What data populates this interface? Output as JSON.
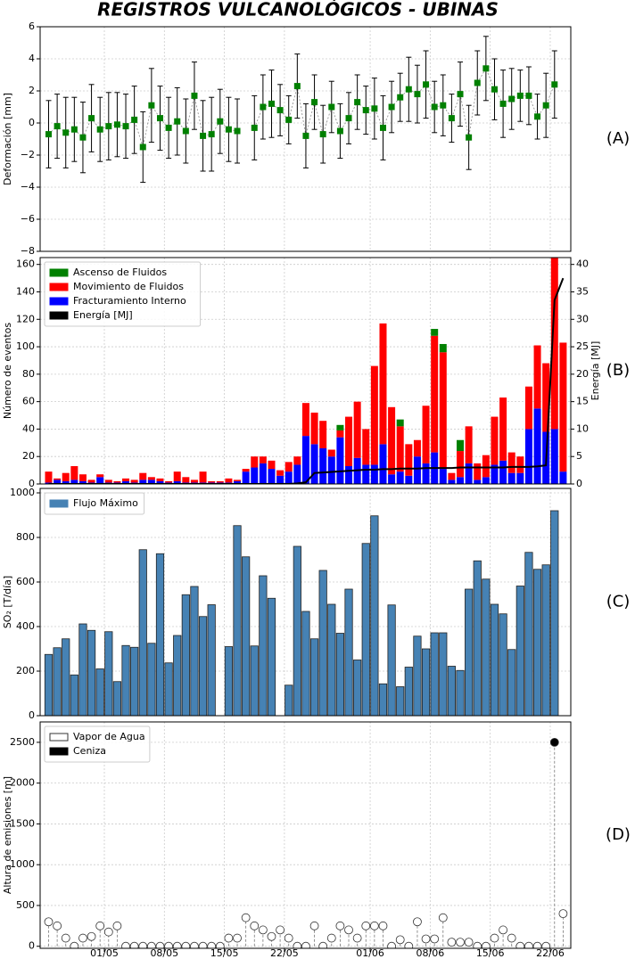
{
  "chart_data": [
    {
      "type": "errorbar",
      "title": "REGISTROS VULCANOLÓGICOS - UBINAS",
      "label": "(A)",
      "ylabel": "Deformación [mm]",
      "color": "#008000",
      "values": [
        -0.7,
        -0.2,
        -0.6,
        -0.4,
        -0.9,
        0.3,
        -0.4,
        -0.2,
        -0.1,
        -0.2,
        0.2,
        -1.5,
        1.1,
        0.3,
        -0.3,
        0.1,
        -0.5,
        1.7,
        -0.8,
        -0.7,
        0.1,
        -0.4,
        -0.5,
        null,
        -0.3,
        1.0,
        1.2,
        0.8,
        0.2,
        2.3,
        -0.8,
        1.3,
        -0.7,
        1.0,
        -0.5,
        0.3,
        1.3,
        0.8,
        0.9,
        -0.3,
        1.0,
        1.6,
        2.1,
        1.8,
        2.4,
        1.0,
        1.1,
        0.3,
        1.8,
        -0.9,
        2.5,
        3.4,
        2.1,
        1.2,
        1.5,
        1.7,
        1.7,
        0.4,
        1.1,
        2.4
      ],
      "errors": [
        2.1,
        2.0,
        2.2,
        2.0,
        2.2,
        2.1,
        2.0,
        2.1,
        2.0,
        2.0,
        2.1,
        2.2,
        2.3,
        2.0,
        1.9,
        2.1,
        2.0,
        2.1,
        2.2,
        2.3,
        2.0,
        2.0,
        2.0,
        null,
        2.0,
        2.0,
        2.1,
        1.6,
        1.5,
        2.0,
        2.0,
        1.7,
        1.8,
        1.6,
        1.7,
        1.6,
        1.7,
        1.5,
        1.9,
        2.0,
        1.6,
        1.5,
        2.0,
        1.8,
        2.1,
        1.6,
        1.9,
        1.5,
        2.0,
        2.0,
        2.0,
        2.0,
        1.9,
        2.1,
        1.9,
        1.6,
        1.8,
        1.4,
        2.0,
        2.1
      ],
      "ylim": [
        -8,
        6
      ],
      "yticks": [
        {
          "value": -8,
          "label": "−8"
        },
        {
          "value": -6,
          "label": "−6"
        },
        {
          "value": -4,
          "label": "−4"
        },
        {
          "value": -2,
          "label": "−2"
        },
        0,
        2,
        4,
        6
      ],
      "grid": true
    },
    {
      "type": "stacked_bar",
      "label": "(B)",
      "ylabel": "Número de eventos",
      "y2label": "Energía [MJ]",
      "legend": "upper left",
      "series": [
        {
          "name": "Ascenso de Fluidos",
          "color": "#008000",
          "values": [
            0,
            0,
            0,
            0,
            0,
            0,
            0,
            0,
            0,
            0,
            0,
            0,
            0,
            0,
            0,
            0,
            0,
            0,
            0,
            0,
            0,
            0,
            0,
            0,
            0,
            0,
            0,
            0,
            0,
            0,
            0,
            0,
            0,
            0,
            4,
            0,
            0,
            0,
            0,
            0,
            0,
            5,
            0,
            0,
            0,
            5,
            6,
            0,
            8,
            0,
            0,
            0,
            0,
            0,
            0,
            0,
            0,
            0,
            0,
            0,
            0
          ]
        },
        {
          "name": "Movimiento de Fluidos",
          "color": "#ff0000",
          "values": [
            8,
            1,
            6,
            10,
            5,
            2,
            2,
            2,
            1,
            2,
            2,
            5,
            2,
            2,
            1,
            7,
            4,
            2,
            8,
            1,
            1,
            3,
            1,
            2,
            8,
            5,
            6,
            4,
            7,
            6,
            24,
            23,
            20,
            5,
            5,
            36,
            41,
            26,
            72,
            88,
            49,
            33,
            23,
            12,
            42,
            85,
            85,
            5,
            19,
            27,
            12,
            16,
            35,
            46,
            15,
            12,
            31,
            46,
            50,
            125,
            94
          ]
        },
        {
          "name": "Fracturamiento Interno",
          "color": "#0000ff",
          "values": [
            1,
            3,
            2,
            3,
            2,
            1,
            5,
            1,
            1,
            2,
            1,
            3,
            3,
            2,
            1,
            2,
            1,
            1,
            1,
            1,
            1,
            1,
            2,
            9,
            12,
            15,
            11,
            6,
            9,
            14,
            35,
            29,
            26,
            20,
            34,
            13,
            19,
            14,
            14,
            29,
            7,
            9,
            6,
            20,
            15,
            23,
            11,
            3,
            5,
            15,
            3,
            5,
            14,
            17,
            8,
            8,
            40,
            55,
            38,
            40,
            9
          ]
        },
        {
          "name": "Energía [MJ]",
          "color": "#000000",
          "axis": "y2",
          "values": [
            0,
            0,
            0,
            0,
            0,
            0,
            0,
            0,
            0,
            0,
            0,
            0,
            0,
            0,
            0,
            0,
            0,
            0,
            0,
            0,
            0,
            0,
            0,
            0,
            0,
            0,
            0,
            0,
            0,
            0.1,
            0.3,
            2.0,
            2.1,
            2.2,
            2.3,
            2.4,
            2.5,
            2.6,
            2.6,
            2.7,
            2.7,
            2.8,
            2.8,
            2.8,
            2.9,
            2.9,
            2.9,
            2.9,
            3.0,
            3.0,
            3.0,
            3.0,
            3.0,
            3.0,
            3.1,
            3.1,
            3.1,
            3.2,
            3.4,
            33.5,
            37.5
          ]
        }
      ],
      "ylim": [
        0,
        165
      ],
      "yticks": [
        0,
        20,
        40,
        60,
        80,
        100,
        120,
        140,
        160
      ],
      "y2lim": [
        0,
        41.25
      ],
      "y2ticks": [
        0,
        5,
        10,
        15,
        20,
        25,
        30,
        35,
        40
      ],
      "grid": true
    },
    {
      "type": "bar",
      "label": "(C)",
      "ylabel": "SO₂ [T/día]",
      "legend": "upper left",
      "series": [
        {
          "name": "Flujo Máximo",
          "color": "#4682b4",
          "values": [
            275,
            305,
            345,
            183,
            412,
            383,
            210,
            377,
            153,
            315,
            307,
            745,
            325,
            727,
            237,
            360,
            543,
            580,
            445,
            498,
            null,
            310,
            853,
            713,
            313,
            628,
            527,
            null,
            137,
            760,
            468,
            345,
            652,
            500,
            370,
            568,
            250,
            773,
            897,
            143,
            497,
            130,
            218,
            357,
            300,
            372,
            372,
            222,
            203,
            568,
            695,
            613,
            500,
            457,
            297,
            582,
            733,
            657,
            677,
            920
          ]
        }
      ],
      "ylim": [
        0,
        1020
      ],
      "yticks": [
        0,
        200,
        400,
        600,
        800,
        1000
      ],
      "grid": true
    },
    {
      "type": "stem",
      "label": "(D)",
      "ylabel": "Altura de emisiones [m]",
      "legend": "upper left",
      "categories": [
        null,
        null,
        null,
        null,
        null,
        null,
        null,
        "01/05",
        null,
        null,
        null,
        null,
        null,
        null,
        "08/05",
        null,
        null,
        null,
        null,
        null,
        null,
        "15/05",
        null,
        null,
        null,
        null,
        null,
        null,
        "22/05",
        null,
        null,
        null,
        null,
        null,
        null,
        null,
        null,
        null,
        "01/06",
        null,
        null,
        null,
        null,
        null,
        null,
        "08/06",
        null,
        null,
        null,
        null,
        null,
        null,
        "15/06",
        null,
        null,
        null,
        null,
        null,
        null,
        "22/06",
        null
      ],
      "series": [
        {
          "name": "Vapor de Agua",
          "color": "#ffffff",
          "values": [
            300,
            250,
            100,
            0,
            100,
            120,
            250,
            175,
            250,
            0,
            0,
            0,
            0,
            0,
            0,
            0,
            0,
            0,
            0,
            0,
            0,
            100,
            100,
            350,
            250,
            200,
            120,
            200,
            100,
            0,
            0,
            250,
            0,
            100,
            250,
            200,
            100,
            250,
            250,
            250,
            0,
            80,
            0,
            300,
            90,
            90,
            350,
            50,
            50,
            50,
            0,
            0,
            100,
            200,
            100,
            0,
            0,
            0,
            0,
            null,
            400
          ]
        },
        {
          "name": "Ceniza",
          "color": "#000000",
          "values": [
            null,
            null,
            null,
            null,
            null,
            null,
            null,
            null,
            null,
            null,
            null,
            null,
            null,
            null,
            null,
            null,
            null,
            null,
            null,
            null,
            null,
            null,
            null,
            null,
            null,
            null,
            null,
            null,
            null,
            null,
            null,
            null,
            null,
            null,
            null,
            null,
            null,
            null,
            null,
            null,
            null,
            null,
            null,
            null,
            null,
            null,
            null,
            null,
            null,
            null,
            null,
            null,
            null,
            null,
            null,
            null,
            null,
            null,
            null,
            2500,
            null
          ]
        }
      ],
      "ylim": [
        -25,
        2750
      ],
      "yticks": [
        0,
        500,
        1000,
        1500,
        2000,
        2500
      ],
      "grid": true
    }
  ]
}
